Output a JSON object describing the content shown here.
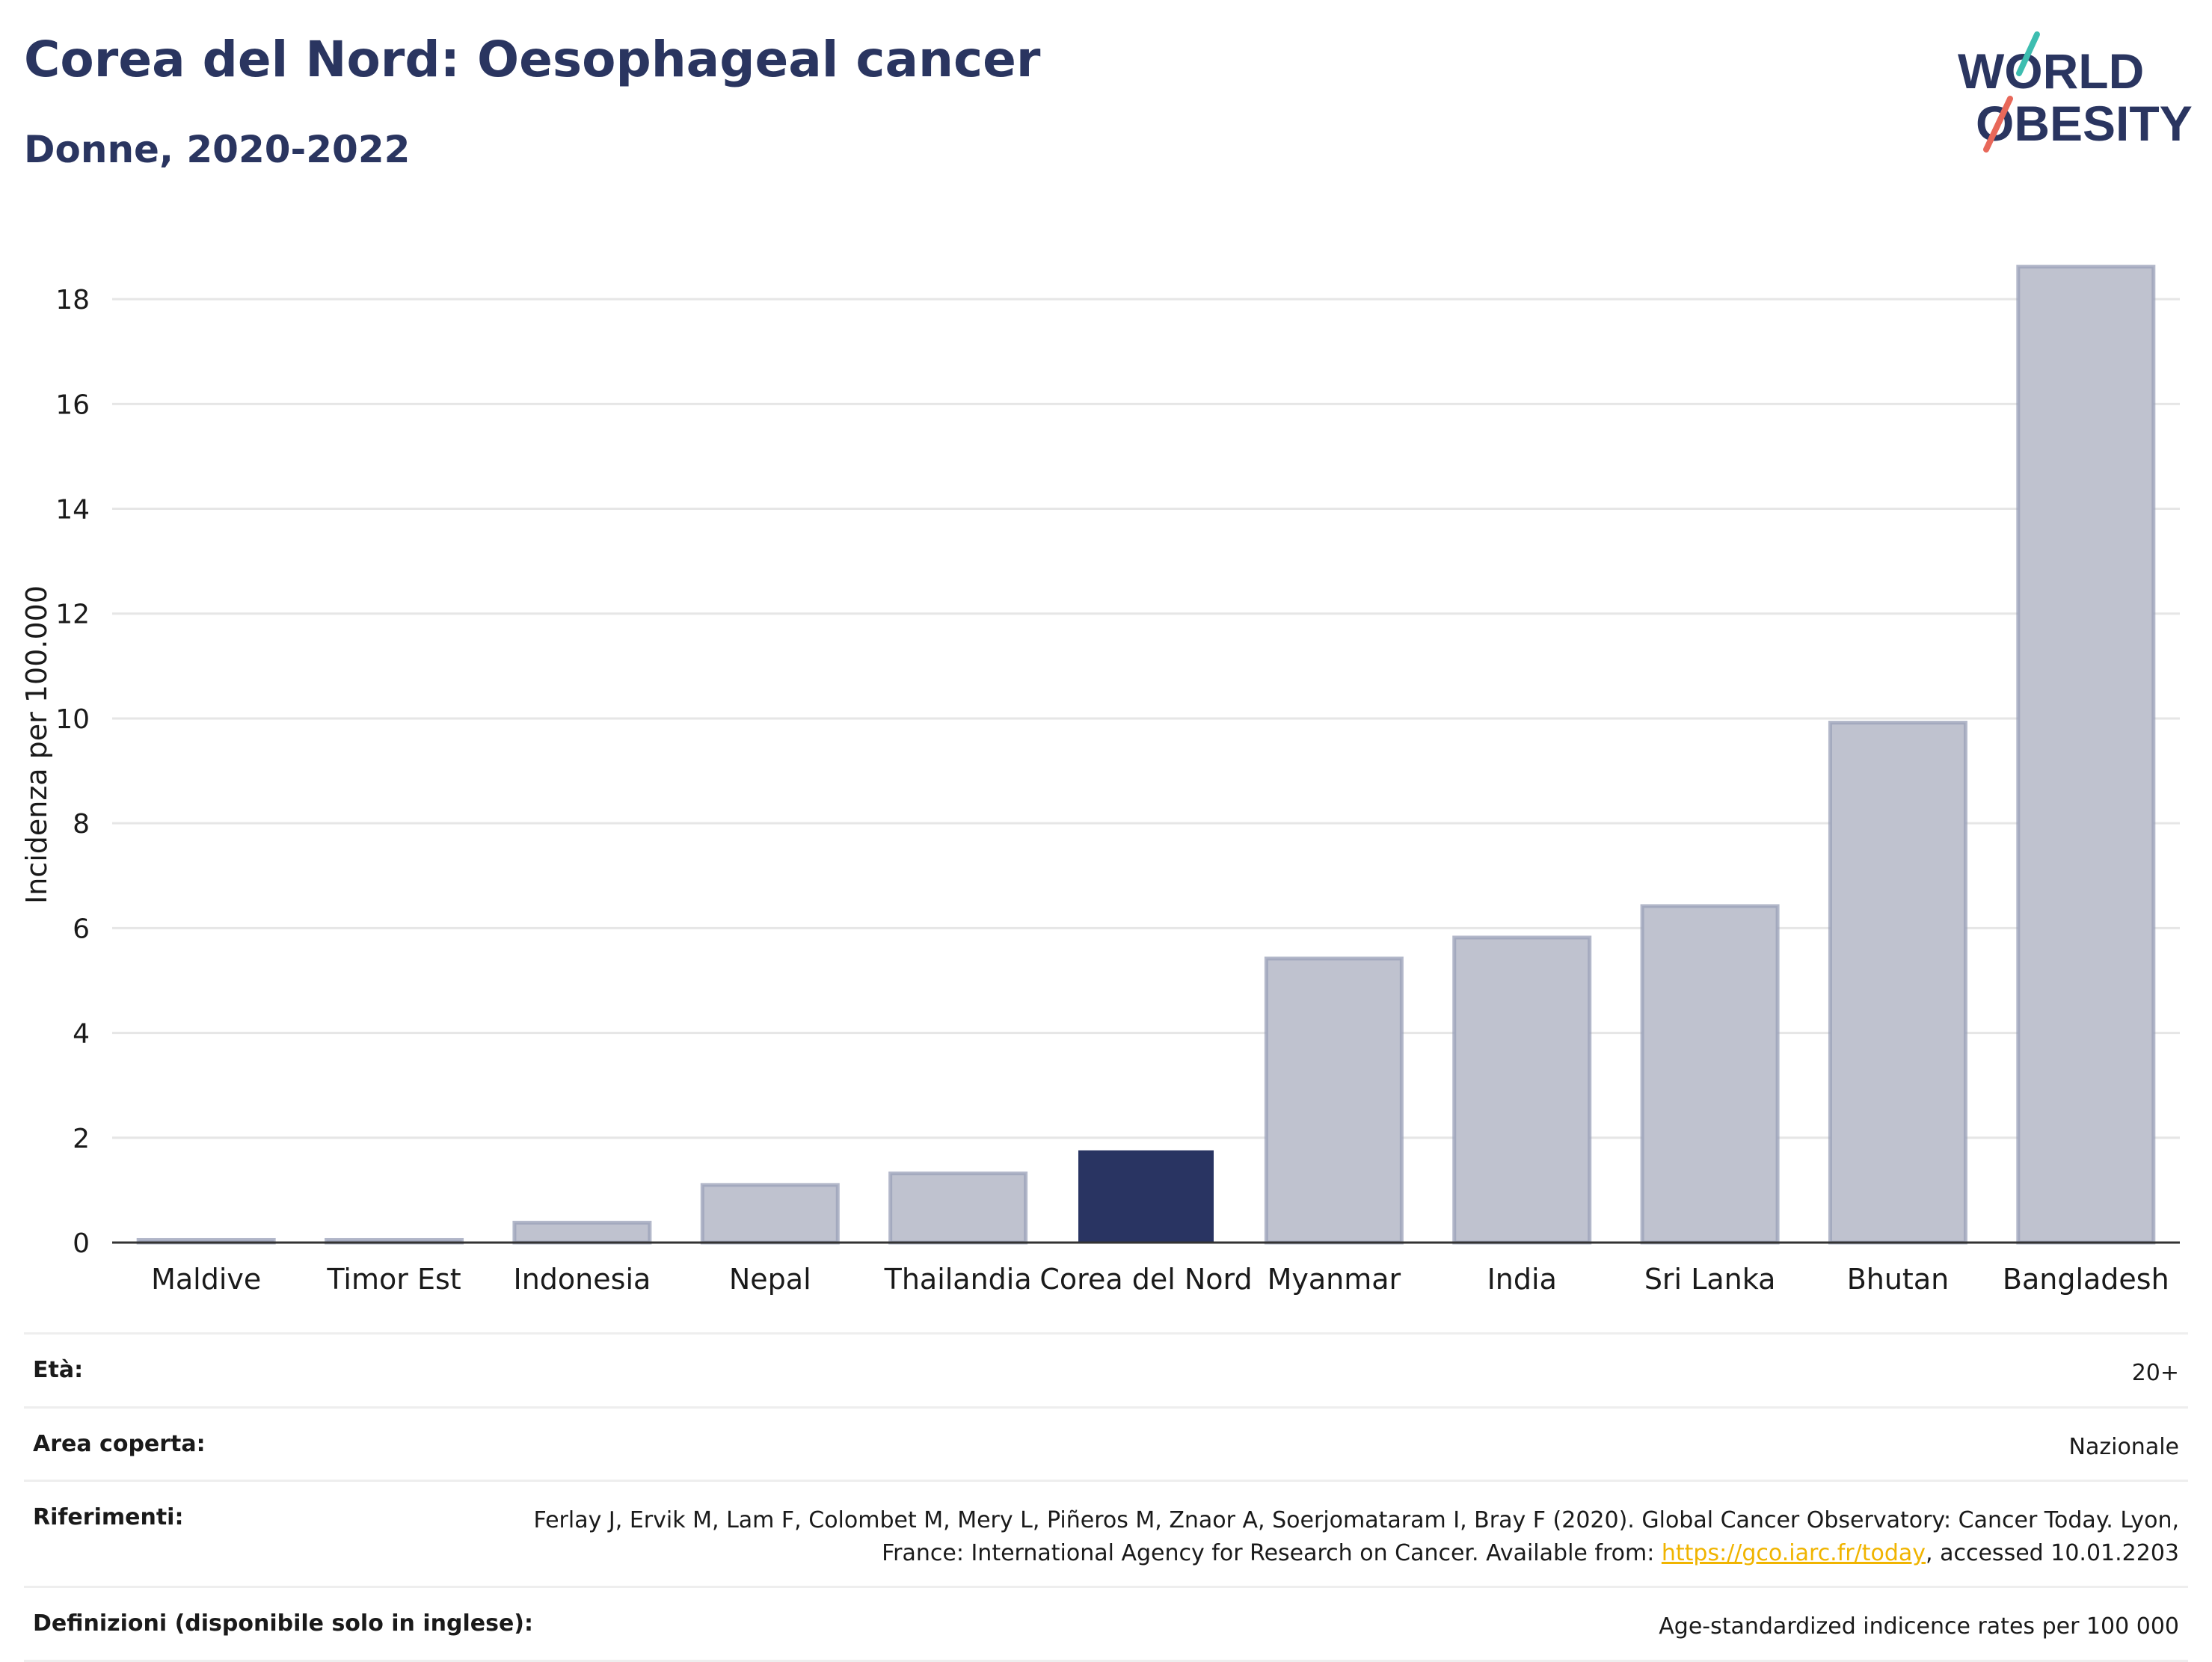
{
  "header": {
    "title": "Corea del Nord: Oesophageal cancer",
    "subtitle": "Donne, 2020-2022",
    "logo_line1": "WORLD",
    "logo_line2": "OBESITY"
  },
  "chart_data": {
    "type": "bar",
    "title": "Corea del Nord: Oesophageal cancer",
    "subtitle": "Donne, 2020-2022",
    "ylabel": "Incidenza per 100.000",
    "xlabel": "",
    "ylim": [
      0,
      19
    ],
    "yticks": [
      0,
      2,
      4,
      6,
      8,
      10,
      12,
      14,
      16,
      18
    ],
    "grid": true,
    "categories": [
      "Maldive",
      "Timor Est",
      "Indonesia",
      "Nepal",
      "Thailandia",
      "Corea del Nord",
      "Myanmar",
      "India",
      "Sri Lanka",
      "Bhutan",
      "Bangladesh"
    ],
    "values": [
      0.05,
      0.05,
      0.38,
      1.1,
      1.32,
      1.76,
      5.42,
      5.82,
      6.42,
      9.92,
      18.62
    ],
    "highlight": "Corea del Nord",
    "colors": {
      "highlight": "#293462",
      "bar": "#bfc2cf",
      "bar_border": "#9aa0b8"
    }
  },
  "meta": [
    {
      "label": "Età:",
      "value": "20+"
    },
    {
      "label": "Area coperta:",
      "value": "Nazionale"
    },
    {
      "label": "Riferimenti:",
      "value_pre": "Ferlay J, Ervik M, Lam F, Colombet M, Mery L, Piñeros M, Znaor A, Soerjomataram I, Bray F (2020). Global Cancer Observatory: Cancer Today. Lyon, France: International Agency for Research on Cancer. Available from: ",
      "link": "https://gco.iarc.fr/today",
      "value_post": ", accessed 10.01.2203"
    },
    {
      "label": "Definizioni (disponibile solo in inglese):",
      "value": "Age-standardized indicence rates per 100 000"
    }
  ]
}
